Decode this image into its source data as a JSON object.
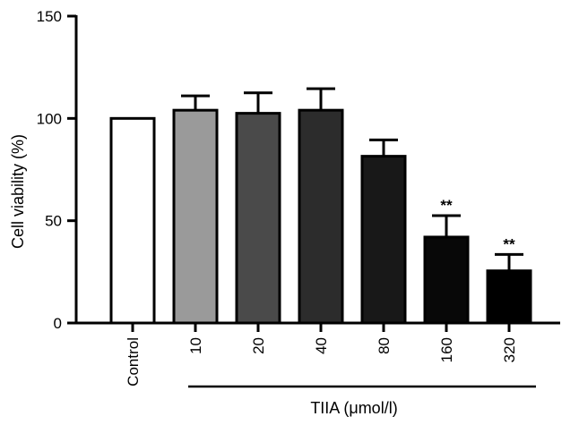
{
  "chart_data": {
    "type": "bar",
    "categories": [
      "Control",
      "10",
      "20",
      "40",
      "80",
      "160",
      "320"
    ],
    "values": [
      100,
      104,
      102.5,
      104,
      81.5,
      42,
      25.5
    ],
    "errors": [
      0,
      7,
      10,
      10.5,
      8,
      10.5,
      8
    ],
    "significance": [
      "",
      "",
      "",
      "",
      "",
      "**",
      "**"
    ],
    "colors": [
      "#ffffff",
      "#9a9a9a",
      "#4a4a4a",
      "#2c2c2c",
      "#181818",
      "#080808",
      "#000000"
    ],
    "ylabel": "Cell viability (%)",
    "group_label": "TIIA (μmol/l)",
    "ylim": [
      0,
      150
    ],
    "yticks": [
      0,
      50,
      100,
      150
    ],
    "grid": false,
    "legend": "none"
  }
}
